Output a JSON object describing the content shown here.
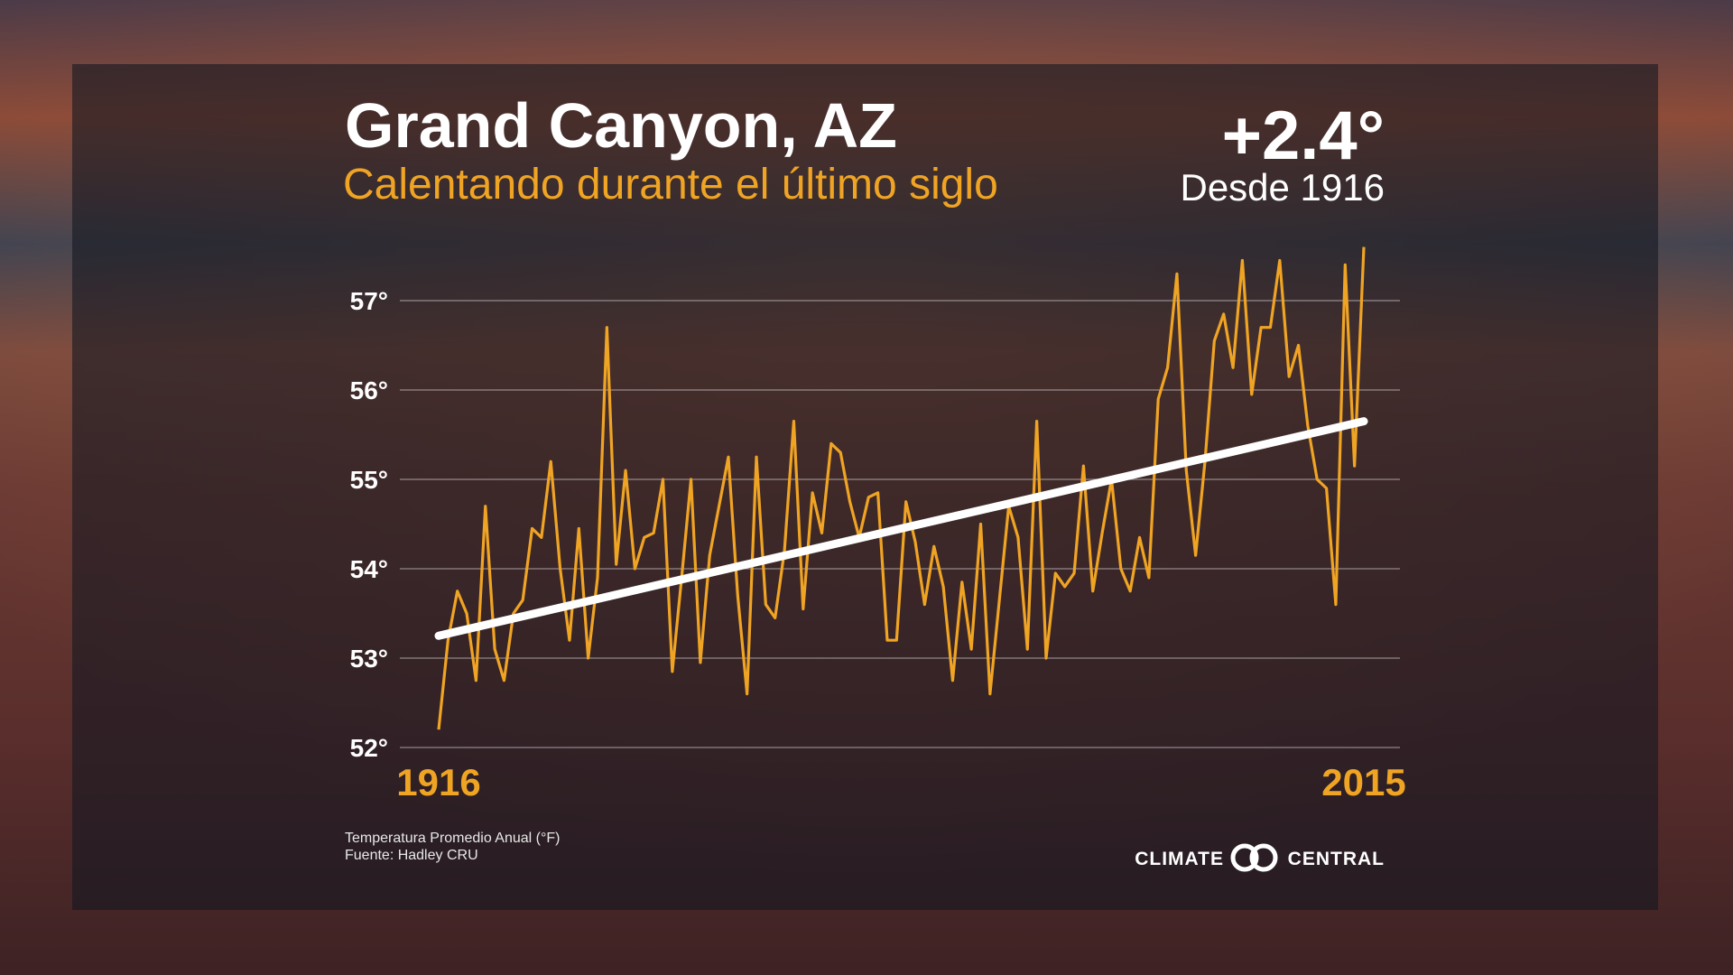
{
  "chart_data": {
    "type": "line",
    "title": "Grand Canyon, AZ",
    "subtitle": "Calentando durante el último siglo",
    "annotation": {
      "change": "+2.4°",
      "since": "Desde 1916"
    },
    "notes": [
      "Temperatura Promedio Anual (°F)",
      "Fuente: Hadley CRU"
    ],
    "logo": {
      "left": "CLIMATE",
      "right": "CENTRAL"
    },
    "x": [
      1916,
      1917,
      1918,
      1919,
      1920,
      1921,
      1922,
      1923,
      1924,
      1925,
      1926,
      1927,
      1928,
      1929,
      1930,
      1931,
      1932,
      1933,
      1934,
      1935,
      1936,
      1937,
      1938,
      1939,
      1940,
      1941,
      1942,
      1943,
      1944,
      1945,
      1946,
      1947,
      1948,
      1949,
      1950,
      1951,
      1952,
      1953,
      1954,
      1955,
      1956,
      1957,
      1958,
      1959,
      1960,
      1961,
      1962,
      1963,
      1964,
      1965,
      1966,
      1967,
      1968,
      1969,
      1970,
      1971,
      1972,
      1973,
      1974,
      1975,
      1976,
      1977,
      1978,
      1979,
      1980,
      1981,
      1982,
      1983,
      1984,
      1985,
      1986,
      1987,
      1988,
      1989,
      1990,
      1991,
      1992,
      1993,
      1994,
      1995,
      1996,
      1997,
      1998,
      1999,
      2000,
      2001,
      2002,
      2003,
      2004,
      2005,
      2006,
      2007,
      2008,
      2009,
      2010,
      2011,
      2012,
      2013,
      2014,
      2015
    ],
    "series": [
      {
        "color": "#f0a424",
        "values": [
          52.2,
          53.2,
          53.75,
          53.5,
          52.75,
          54.7,
          53.1,
          52.75,
          53.5,
          53.65,
          54.45,
          54.35,
          55.2,
          54.0,
          53.2,
          54.45,
          53.0,
          53.9,
          56.7,
          54.05,
          55.1,
          54.0,
          54.35,
          54.4,
          55.0,
          52.85,
          53.9,
          55.0,
          52.95,
          54.15,
          54.7,
          55.25,
          53.7,
          52.6,
          55.25,
          53.6,
          53.45,
          54.2,
          55.65,
          53.55,
          54.85,
          54.4,
          55.4,
          55.3,
          54.75,
          54.35,
          54.8,
          54.85,
          53.2,
          53.2,
          54.75,
          54.3,
          53.6,
          54.25,
          53.8,
          52.75,
          53.85,
          53.1,
          54.5,
          52.6,
          53.65,
          54.7,
          54.35,
          53.1,
          55.65,
          53.0,
          53.95,
          53.8,
          53.95,
          55.15,
          53.75,
          54.4,
          55.0,
          54.0,
          53.75,
          54.35,
          53.9,
          55.9,
          56.25,
          57.3,
          55.1,
          54.15,
          55.2,
          56.55,
          56.85,
          56.25,
          57.45,
          55.95,
          56.7,
          56.7,
          57.45,
          56.15,
          56.5,
          55.6,
          55.0,
          54.9,
          53.6,
          57.4,
          55.15,
          57.6
        ]
      }
    ],
    "trend": {
      "x": [
        1916,
        2015
      ],
      "values": [
        53.25,
        55.65
      ],
      "color": "#ffffff"
    },
    "xlim": [
      1916,
      2015
    ],
    "xticks": [
      1916,
      2015
    ],
    "ylim": [
      52,
      57
    ],
    "yticks": [
      {
        "value": 52,
        "label": "52°"
      },
      {
        "value": 53,
        "label": "53°"
      },
      {
        "value": 54,
        "label": "54°"
      },
      {
        "value": 55,
        "label": "55°"
      },
      {
        "value": 56,
        "label": "56°"
      },
      {
        "value": 57,
        "label": "57°"
      }
    ],
    "grid": true
  }
}
